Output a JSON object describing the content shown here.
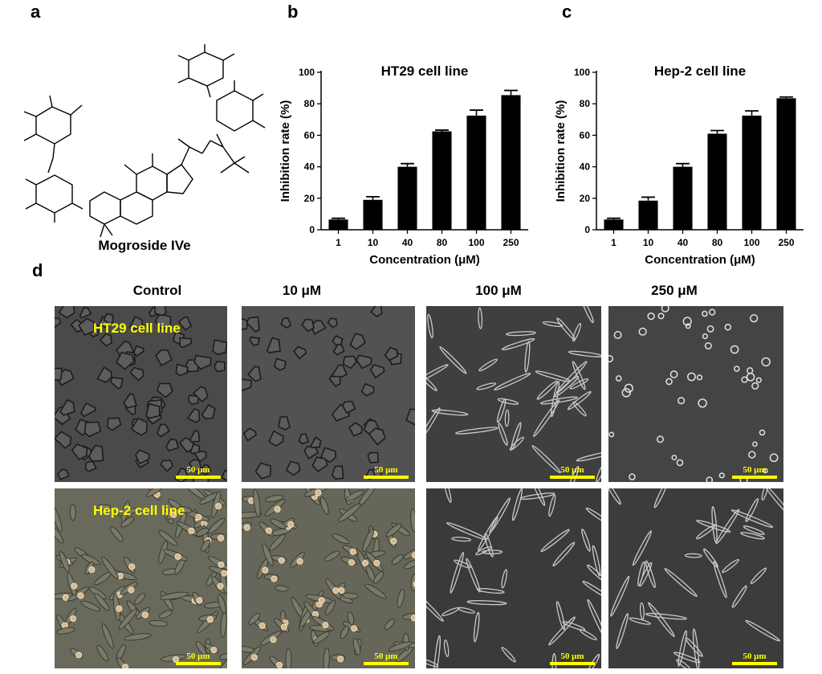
{
  "panels": {
    "a": "a",
    "b": "b",
    "c": "c",
    "d": "d"
  },
  "molecule": {
    "caption": "Mogroside IVe"
  },
  "colors": {
    "bar_fill": "#000000",
    "scale_bar": "#ffff00",
    "overlay_text": "#ffff00"
  },
  "chart_data": [
    {
      "type": "bar",
      "title": "HT29 cell line",
      "xlabel": "Concentration (μM)",
      "ylabel": "Inhibition rate (%)",
      "categories": [
        "1",
        "10",
        "40",
        "80",
        "100",
        "250"
      ],
      "values": [
        6.5,
        19,
        40,
        62.5,
        72.5,
        85.5
      ],
      "errors": [
        0.8,
        2.0,
        2.0,
        0.8,
        3.5,
        3.0
      ],
      "ylim": [
        0,
        100
      ],
      "yticks": [
        0,
        20,
        40,
        60,
        80,
        100
      ],
      "grid": false
    },
    {
      "type": "bar",
      "title": "Hep-2 cell line",
      "xlabel": "Concentration (μM)",
      "ylabel": "Inhibition rate (%)",
      "categories": [
        "1",
        "10",
        "40",
        "80",
        "100",
        "250"
      ],
      "values": [
        6.5,
        18.5,
        40,
        61,
        72.5,
        83.5
      ],
      "errors": [
        0.8,
        2.2,
        2.0,
        2.0,
        3.0,
        0.8
      ],
      "ylim": [
        0,
        100
      ],
      "yticks": [
        0,
        20,
        40,
        60,
        80,
        100
      ],
      "grid": false
    }
  ],
  "micrographs": {
    "columns": [
      "Control",
      "10 μM",
      "100 μM",
      "250 μM"
    ],
    "rows": [
      "HT29 cell line",
      "Hep-2 cell line"
    ],
    "scale_label": "50 μm"
  }
}
